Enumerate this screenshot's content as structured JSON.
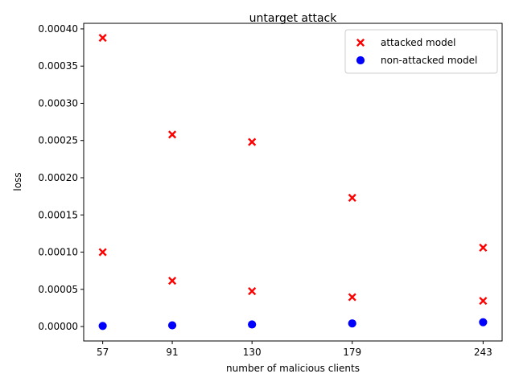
{
  "chart_data": {
    "type": "scatter",
    "title": "untarget attack",
    "xlabel": "number of malicious clients",
    "ylabel": "loss",
    "xticks": [
      57,
      91,
      130,
      179,
      243
    ],
    "xtick_labels": [
      "57",
      "91",
      "130",
      "179",
      "243"
    ],
    "xlim": [
      47.7,
      252.3
    ],
    "ylim": [
      -1.94e-05,
      0.0004075
    ],
    "yticks": [
      0,
      5e-05,
      0.0001,
      0.00015,
      0.0002,
      0.00025,
      0.0003,
      0.00035,
      0.0004
    ],
    "ytick_labels": [
      "0.00000",
      "0.00005",
      "0.00010",
      "0.00015",
      "0.00020",
      "0.00025",
      "0.00030",
      "0.00035",
      "0.00040"
    ],
    "grid": false,
    "legend_position": "top-right",
    "series": [
      {
        "name": "attacked model",
        "marker": "x",
        "color": "#ff0000",
        "points": [
          {
            "x": 57,
            "y": 0.000388
          },
          {
            "x": 57,
            "y": 0.0001
          },
          {
            "x": 91,
            "y": 0.000258
          },
          {
            "x": 91,
            "y": 6.15e-05
          },
          {
            "x": 130,
            "y": 0.000248
          },
          {
            "x": 130,
            "y": 4.75e-05
          },
          {
            "x": 179,
            "y": 0.000173
          },
          {
            "x": 179,
            "y": 3.95e-05
          },
          {
            "x": 243,
            "y": 0.000106
          },
          {
            "x": 243,
            "y": 3.45e-05
          }
        ]
      },
      {
        "name": "non-attacked model",
        "marker": "o",
        "color": "#0000ff",
        "points": [
          {
            "x": 57,
            "y": 8e-07
          },
          {
            "x": 91,
            "y": 1.6e-06
          },
          {
            "x": 130,
            "y": 2.8e-06
          },
          {
            "x": 179,
            "y": 4.2e-06
          },
          {
            "x": 243,
            "y": 5.8e-06
          }
        ]
      }
    ]
  }
}
